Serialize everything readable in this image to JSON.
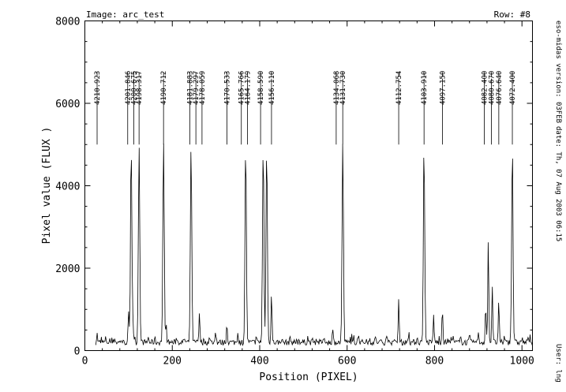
{
  "header": {
    "image_label": "Image: arc_test",
    "row_label": "Row: #8"
  },
  "side_info": {
    "version": "eso-midas version: 03FEB",
    "date": "date: Th, 07 Aug 2003 06:15",
    "user": "User: lng"
  },
  "chart_data": {
    "type": "line",
    "title": "",
    "xlabel": "Position (PIXEL)",
    "ylabel": "Pixel value (FLUX )",
    "xlim": [
      0,
      1024
    ],
    "ylim": [
      0,
      8000
    ],
    "xticks": [
      0,
      200,
      400,
      600,
      800,
      1000
    ],
    "yticks": [
      0,
      2000,
      4000,
      6000,
      8000
    ],
    "grid": false,
    "baseline": 200,
    "series": [
      {
        "name": "",
        "peaks": [
          {
            "x": 28,
            "y": 400
          },
          {
            "x": 48,
            "y": 300
          },
          {
            "x": 68,
            "y": 320
          },
          {
            "x": 83,
            "y": 280
          },
          {
            "x": 100,
            "y": 900
          },
          {
            "x": 106,
            "y": 5000
          },
          {
            "x": 110,
            "y": 700
          },
          {
            "x": 124,
            "y": 5000
          },
          {
            "x": 145,
            "y": 320
          },
          {
            "x": 160,
            "y": 300
          },
          {
            "x": 180,
            "y": 5000
          },
          {
            "x": 186,
            "y": 600
          },
          {
            "x": 210,
            "y": 330
          },
          {
            "x": 228,
            "y": 300
          },
          {
            "x": 243,
            "y": 5000
          },
          {
            "x": 262,
            "y": 900
          },
          {
            "x": 285,
            "y": 300
          },
          {
            "x": 300,
            "y": 350
          },
          {
            "x": 325,
            "y": 650
          },
          {
            "x": 350,
            "y": 450
          },
          {
            "x": 368,
            "y": 5000
          },
          {
            "x": 392,
            "y": 300
          },
          {
            "x": 408,
            "y": 5000
          },
          {
            "x": 416,
            "y": 5000
          },
          {
            "x": 427,
            "y": 1400
          },
          {
            "x": 450,
            "y": 300
          },
          {
            "x": 470,
            "y": 320
          },
          {
            "x": 490,
            "y": 280
          },
          {
            "x": 510,
            "y": 330
          },
          {
            "x": 530,
            "y": 300
          },
          {
            "x": 548,
            "y": 350
          },
          {
            "x": 567,
            "y": 500
          },
          {
            "x": 590,
            "y": 5000
          },
          {
            "x": 607,
            "y": 300
          },
          {
            "x": 625,
            "y": 320
          },
          {
            "x": 645,
            "y": 280
          },
          {
            "x": 665,
            "y": 300
          },
          {
            "x": 690,
            "y": 420
          },
          {
            "x": 718,
            "y": 1250
          },
          {
            "x": 740,
            "y": 380
          },
          {
            "x": 760,
            "y": 330
          },
          {
            "x": 776,
            "y": 5000
          },
          {
            "x": 798,
            "y": 850
          },
          {
            "x": 818,
            "y": 1050
          },
          {
            "x": 840,
            "y": 330
          },
          {
            "x": 860,
            "y": 300
          },
          {
            "x": 880,
            "y": 350
          },
          {
            "x": 900,
            "y": 400
          },
          {
            "x": 917,
            "y": 1100
          },
          {
            "x": 923,
            "y": 2750
          },
          {
            "x": 932,
            "y": 1600
          },
          {
            "x": 947,
            "y": 1150
          },
          {
            "x": 960,
            "y": 350
          },
          {
            "x": 978,
            "y": 5000
          },
          {
            "x": 1000,
            "y": 300
          },
          {
            "x": 1015,
            "y": 320
          }
        ]
      }
    ],
    "line_ids": [
      {
        "label": "4210.923",
        "x": 28
      },
      {
        "label": "4201.846",
        "x": 98
      },
      {
        "label": "4200.675",
        "x": 112
      },
      {
        "label": "4198.317",
        "x": 124
      },
      {
        "label": "4190.712",
        "x": 180
      },
      {
        "label": "4181.883",
        "x": 240
      },
      {
        "label": "4179.297",
        "x": 254
      },
      {
        "label": "4178.059",
        "x": 268
      },
      {
        "label": "4170.533",
        "x": 325
      },
      {
        "label": "4165.766",
        "x": 358
      },
      {
        "label": "4164.179",
        "x": 372
      },
      {
        "label": "4158.590",
        "x": 402
      },
      {
        "label": "4156.110",
        "x": 427
      },
      {
        "label": "4134.068",
        "x": 575
      },
      {
        "label": "4131.730",
        "x": 590
      },
      {
        "label": "4112.754",
        "x": 718
      },
      {
        "label": "4103.910",
        "x": 776
      },
      {
        "label": "4097.150",
        "x": 818
      },
      {
        "label": "4082.400",
        "x": 914
      },
      {
        "label": "4080.670",
        "x": 930
      },
      {
        "label": "4076.640",
        "x": 947
      },
      {
        "label": "4072.400",
        "x": 978
      }
    ],
    "id_marker": {
      "top": 6600,
      "bottom": 5000
    }
  }
}
